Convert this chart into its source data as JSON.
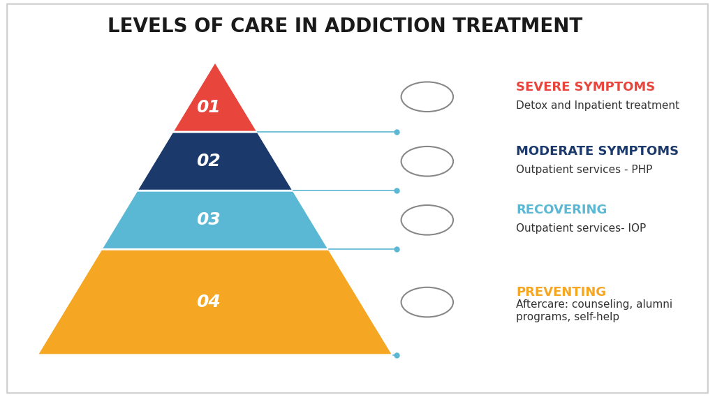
{
  "title": "LEVELS OF CARE IN ADDICTION TREATMENT",
  "title_fontsize": 20,
  "title_color": "#1a1a1a",
  "background_color": "#ffffff",
  "levels": [
    {
      "number": "01",
      "color": "#E8453C",
      "heading": "SEVERE SYMPTOMS",
      "heading_color": "#E8453C",
      "description": "Detox and Inpatient treatment",
      "number_color": "#ffffff"
    },
    {
      "number": "02",
      "color": "#1B3A6B",
      "heading": "MODERATE SYMPTOMS",
      "heading_color": "#1B3A6B",
      "description": "Outpatient services - PHP",
      "number_color": "#ffffff"
    },
    {
      "number": "03",
      "color": "#5BB8D4",
      "heading": "RECOVERING",
      "heading_color": "#5BB8D4",
      "description": "Outpatient services- IOP",
      "number_color": "#ffffff"
    },
    {
      "number": "04",
      "color": "#F5A623",
      "heading": "PREVENTING",
      "heading_color": "#F5A623",
      "description": "Aftercare: counseling, alumni\nprograms, self-help",
      "number_color": "#ffffff"
    }
  ],
  "connector_color": "#5BB8D4",
  "text_color": "#333333",
  "heading_fontsize": 13,
  "description_fontsize": 11,
  "number_fontsize": 18
}
